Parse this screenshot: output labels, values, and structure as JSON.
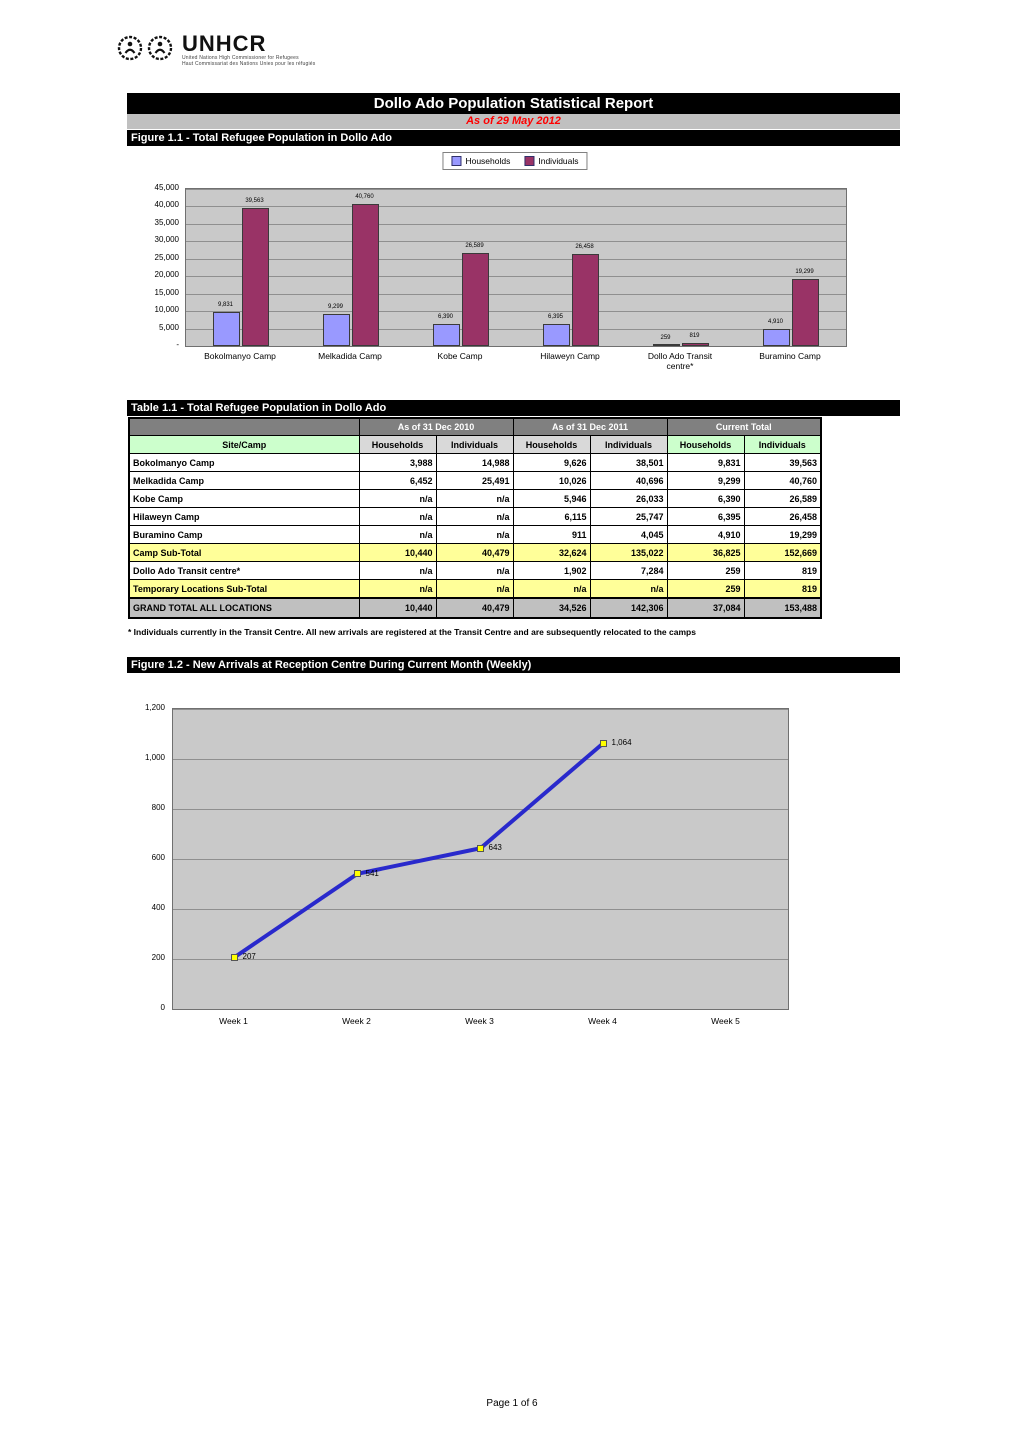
{
  "report": {
    "title": "Dollo Ado Population Statistical Report",
    "as_of": "As of 29 May 2012",
    "page_footer": "Page 1 of 6"
  },
  "logo": {
    "org": "UNHCR",
    "subtitle_line1": "United Nations High Commissioner for Refugees",
    "subtitle_line2": "Haut Commissariat des Nations Unies pour les réfugiés"
  },
  "figure_1_1": {
    "heading": "Figure 1.1 - Total Refugee Population in Dollo Ado"
  },
  "figure_1_2": {
    "heading": "Figure 1.2 - New Arrivals at Reception Centre During Current Month (Weekly)"
  },
  "chart_data": [
    {
      "id": "camp-population-bar",
      "type": "bar",
      "title": "Total Refugee Population in Dollo Ado",
      "categories": [
        "Bokolmanyo Camp",
        "Melkadida Camp",
        "Kobe Camp",
        "Hilaweyn Camp",
        "Dollo Ado Transit\ncentre*",
        "Buramino Camp"
      ],
      "series": [
        {
          "name": "Households",
          "color": "#9999ff",
          "values": [
            9831,
            9299,
            6390,
            6395,
            259,
            4910
          ],
          "value_labels": [
            "9,831",
            "9,299",
            "6,390",
            "6,395",
            "259",
            "4,910"
          ]
        },
        {
          "name": "Individuals",
          "color": "#993366",
          "values": [
            39563,
            40760,
            26589,
            26458,
            819,
            19299
          ],
          "value_labels": [
            "39,563",
            "40,760",
            "26,589",
            "26,458",
            "819",
            "19,299"
          ]
        }
      ],
      "ylim": [
        0,
        45000
      ],
      "ytick_interval": 5000,
      "ytick_labels": [
        "45,000",
        "40,000",
        "35,000",
        "30,000",
        "25,000",
        "20,000",
        "15,000",
        "10,000",
        "5,000",
        "-"
      ],
      "legend_position": "top",
      "grid": true
    },
    {
      "id": "weekly-arrivals-line",
      "type": "line",
      "title": "New Arrivals at Reception Centre During Current Month (Weekly)",
      "categories": [
        "Week 1",
        "Week 2",
        "Week 3",
        "Week 4",
        "Week 5"
      ],
      "values": [
        207,
        541,
        643,
        1064,
        null
      ],
      "point_labels": [
        "207",
        "541",
        "643",
        "1,064"
      ],
      "ylim": [
        0,
        1200
      ],
      "ytick_interval": 200,
      "ytick_labels": [
        "1,200",
        "1,000",
        "800",
        "600",
        "400",
        "200",
        "0"
      ],
      "line_color": "#2929cc",
      "marker_color": "#ffff00",
      "grid": true
    }
  ],
  "table_1_1": {
    "heading": "Table 1.1 - Total Refugee Population in Dollo Ado",
    "period_headers": [
      "As of 31 Dec 2010",
      "As of 31 Dec 2011",
      "Current Total"
    ],
    "column_headers": [
      "Site/Camp",
      "Households",
      "Individuals",
      "Households",
      "Individuals",
      "Households",
      "Individuals"
    ],
    "rows": [
      {
        "label": "Bokolmanyo Camp",
        "values": [
          "3,988",
          "14,988",
          "9,626",
          "38,501",
          "9,831",
          "39,563"
        ],
        "style": "data"
      },
      {
        "label": "Melkadida Camp",
        "values": [
          "6,452",
          "25,491",
          "10,026",
          "40,696",
          "9,299",
          "40,760"
        ],
        "style": "data"
      },
      {
        "label": "Kobe Camp",
        "values": [
          "n/a",
          "n/a",
          "5,946",
          "26,033",
          "6,390",
          "26,589"
        ],
        "style": "data"
      },
      {
        "label": "Hilaweyn Camp",
        "values": [
          "n/a",
          "n/a",
          "6,115",
          "25,747",
          "6,395",
          "26,458"
        ],
        "style": "data"
      },
      {
        "label": "Buramino Camp",
        "values": [
          "n/a",
          "n/a",
          "911",
          "4,045",
          "4,910",
          "19,299"
        ],
        "style": "data"
      },
      {
        "label": "Camp Sub-Total",
        "values": [
          "10,440",
          "40,479",
          "32,624",
          "135,022",
          "36,825",
          "152,669"
        ],
        "style": "subtotal"
      },
      {
        "label": "Dollo Ado Transit centre*",
        "values": [
          "n/a",
          "n/a",
          "1,902",
          "7,284",
          "259",
          "819"
        ],
        "style": "data"
      },
      {
        "label": "Temporary Locations Sub-Total",
        "values": [
          "n/a",
          "n/a",
          "n/a",
          "n/a",
          "259",
          "819"
        ],
        "style": "subtotal"
      },
      {
        "label": "GRAND TOTAL ALL LOCATIONS",
        "values": [
          "10,440",
          "40,479",
          "34,526",
          "142,306",
          "37,084",
          "153,488"
        ],
        "style": "grandtotal"
      }
    ],
    "footnote": "* Individuals currently in the Transit Centre. All new arrivals are registered at the Transit Centre and are subsequently relocated to the camps"
  },
  "colors": {
    "households": "#9999ff",
    "individuals": "#993366",
    "line": "#2929cc",
    "marker": "#ffff00",
    "accent_red": "#ff0000",
    "subtotal_bg": "#ffff99",
    "grandtotal_bg": "#c0c0c0",
    "header_bg": "#808080",
    "green_bg": "#ccffcc"
  }
}
